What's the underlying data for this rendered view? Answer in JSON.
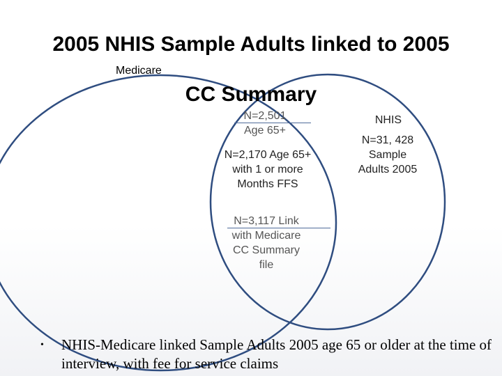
{
  "title": {
    "line1": "2005 NHIS Sample Adults linked to 2005",
    "line2": "CC Summary"
  },
  "circles": {
    "medicare": {
      "label": "Medicare"
    },
    "nhis": {
      "label": "NHIS",
      "line1": "N=31, 428",
      "line2": "Sample",
      "line3": "Adults 2005"
    }
  },
  "overlap": {
    "age65": {
      "line1": "N=2,501",
      "line2": "Age 65+"
    },
    "ffs": {
      "line1": "N=2,170 Age 65+",
      "line2": "with 1 or more",
      "line3": "Months FFS"
    },
    "link": {
      "line1": "N=3,117 Link",
      "line2": "with Medicare",
      "line3": "CC Summary",
      "line4": "file"
    }
  },
  "bullet": {
    "marker": "•",
    "text": "NHIS-Medicare linked Sample Adults 2005 age 65 or older at the time of interview, with fee for service claims"
  },
  "colors": {
    "circle_stroke": "#2f4d80",
    "text": "#000000"
  }
}
